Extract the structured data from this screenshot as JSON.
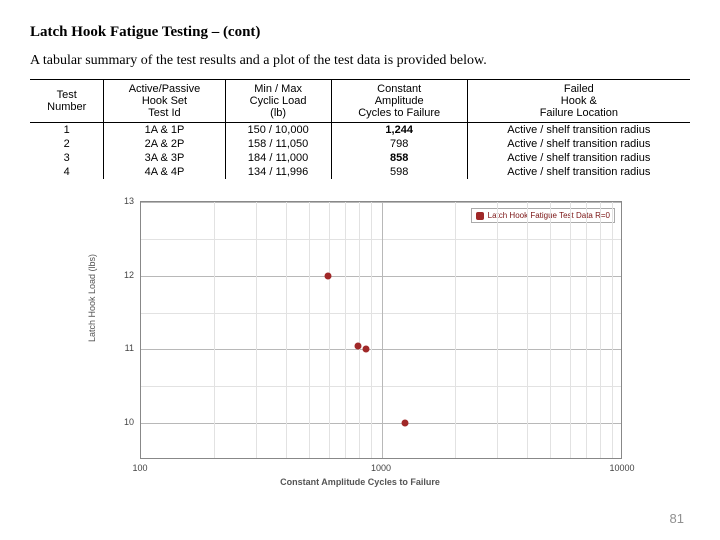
{
  "title": "Latch Hook Fatigue Testing – (cont)",
  "intro": "A tabular summary of the test results and a plot of the test data is provided below.",
  "pageNumber": "81",
  "table": {
    "headers": [
      "Test\nNumber",
      "Active/Passive\nHook Set\nTest Id",
      "Min / Max\nCyclic Load\n(lb)",
      "Constant\nAmplitude\nCycles to Failure",
      "Failed\nHook &\nFailure Location"
    ],
    "rows": [
      {
        "num": "1",
        "id": "1A & 1P",
        "load": "150 / 10,000",
        "cycles": "1,244",
        "cyclesBold": true,
        "loc": "Active / shelf transition radius"
      },
      {
        "num": "2",
        "id": "2A & 2P",
        "load": "158 / 11,050",
        "cycles": "798",
        "cyclesBold": false,
        "loc": "Active / shelf transition radius"
      },
      {
        "num": "3",
        "id": "3A & 3P",
        "load": "184 / 11,000",
        "cycles": "858",
        "cyclesBold": true,
        "loc": "Active / shelf transition radius"
      },
      {
        "num": "4",
        "id": "4A & 4P",
        "load": "134 / 11,996",
        "cycles": "598",
        "cyclesBold": false,
        "loc": "Active / shelf transition radius"
      }
    ]
  },
  "chart": {
    "type": "scatter",
    "x_axis_label": "Constant Amplitude Cycles to Failure",
    "y_axis_label": "Latch Hook Load (lbs)",
    "x_scale": "log",
    "x_min": 100,
    "x_max": 10000,
    "y_min": 9.5,
    "y_max": 13,
    "y_ticks": [
      10,
      11,
      12,
      13
    ],
    "x_major_ticks": [
      100,
      1000,
      10000
    ],
    "y_minor_step": 0.5,
    "legend_text": "Latch Hook Fatigue Test Data   R=0",
    "marker_color": "#a02828",
    "grid_major_color": "#b8b8b8",
    "grid_minor_color": "#e2e2e2",
    "background_color": "#ffffff",
    "points": [
      {
        "x": 598,
        "y": 12.0
      },
      {
        "x": 798,
        "y": 11.05
      },
      {
        "x": 858,
        "y": 11.0
      },
      {
        "x": 1244,
        "y": 10.0
      }
    ]
  }
}
